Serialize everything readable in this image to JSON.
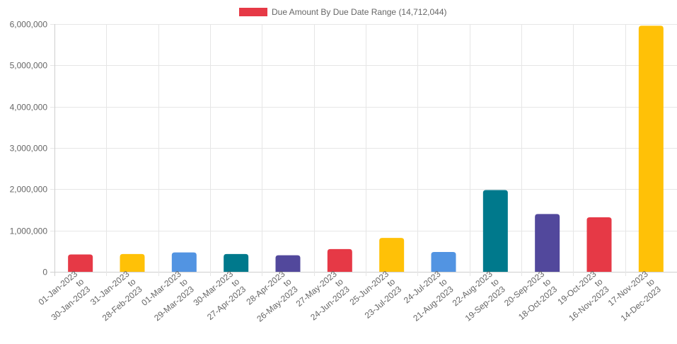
{
  "chart_data": {
    "type": "bar",
    "legend": {
      "label": "Due Amount By Due Date Range (14,712,044)",
      "swatch_color": "#E63946",
      "placement": "top-center"
    },
    "categories": [
      [
        "01-Jan-2023",
        "to",
        "30-Jan-2023"
      ],
      [
        "31-Jan-2023",
        "to",
        "28-Feb-2023"
      ],
      [
        "01-Mar-2023",
        "to",
        "29-Mar-2023"
      ],
      [
        "30-Mar-2023",
        "to",
        "27-Apr-2023"
      ],
      [
        "28-Apr-2023",
        "to",
        "26-May-2023"
      ],
      [
        "27-May-2023",
        "to",
        "24-Jun-2023"
      ],
      [
        "25-Jun-2023",
        "to",
        "23-Jul-2023"
      ],
      [
        "24-Jul-2023",
        "to",
        "21-Aug-2023"
      ],
      [
        "22-Aug-2023",
        "to",
        "19-Sep-2023"
      ],
      [
        "20-Sep-2023",
        "to",
        "18-Oct-2023"
      ],
      [
        "19-Oct-2023",
        "to",
        "16-Nov-2023"
      ],
      [
        "17-Nov-2023",
        "to",
        "14-Dec-2023"
      ]
    ],
    "values": [
      420000,
      430000,
      470000,
      430000,
      400000,
      550000,
      820000,
      480000,
      1980000,
      1400000,
      1320000,
      5960000
    ],
    "colors": [
      "#E63946",
      "#FFC107",
      "#5294E2",
      "#00798C",
      "#52489C",
      "#E63946",
      "#FFC107",
      "#5294E2",
      "#00798C",
      "#52489C",
      "#E63946",
      "#FFC107"
    ],
    "ylim": [
      0,
      6000000
    ],
    "yticks": [
      0,
      1000000,
      2000000,
      3000000,
      4000000,
      5000000,
      6000000
    ],
    "ytick_labels": [
      "0",
      "1,000,000",
      "2,000,000",
      "3,000,000",
      "4,000,000",
      "5,000,000",
      "6,000,000"
    ],
    "grid": true
  }
}
